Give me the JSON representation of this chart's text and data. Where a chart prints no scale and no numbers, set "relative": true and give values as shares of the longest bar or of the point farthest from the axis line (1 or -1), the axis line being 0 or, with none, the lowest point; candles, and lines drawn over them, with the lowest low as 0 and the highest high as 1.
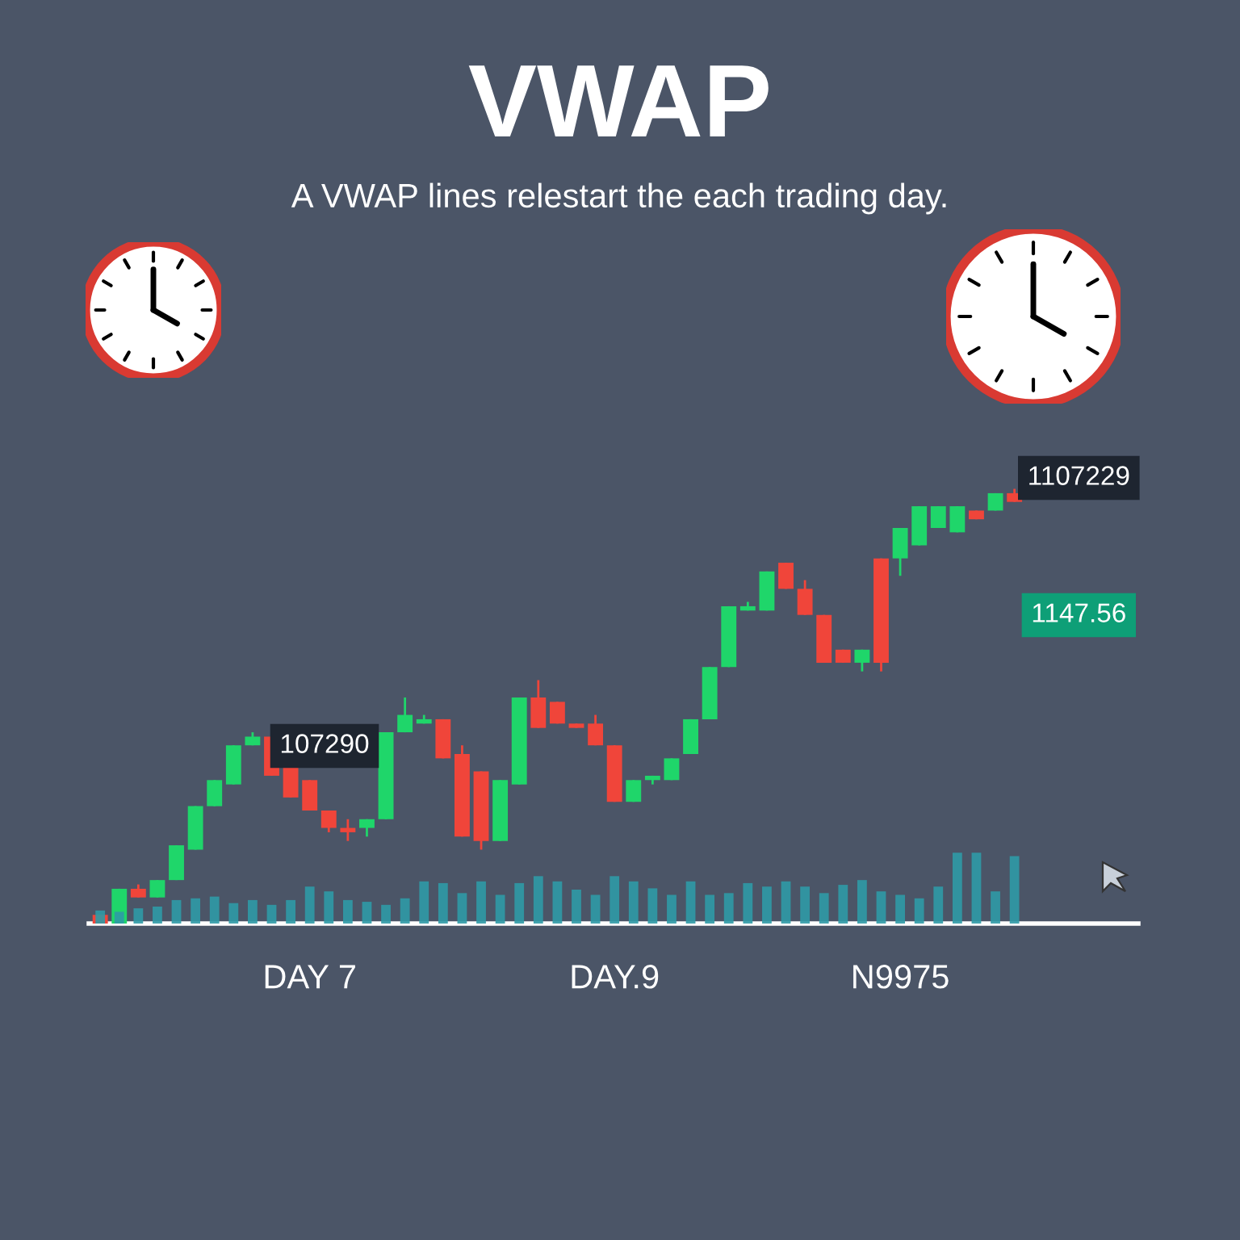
{
  "chart_data": {
    "type": "candlestick",
    "title": "VWAP",
    "subtitle": "A VWAP lines relestart the each trading day.",
    "relative": true,
    "grid": false,
    "legend": false,
    "categories": [
      null,
      null,
      null,
      null,
      null,
      null,
      null,
      null,
      null,
      null,
      null,
      "DAY 7",
      null,
      null,
      null,
      null,
      null,
      null,
      null,
      null,
      null,
      null,
      null,
      null,
      null,
      null,
      null,
      "DAY.9",
      null,
      null,
      null,
      null,
      null,
      null,
      null,
      null,
      null,
      null,
      null,
      null,
      null,
      null,
      "N9975",
      null,
      null,
      null,
      null,
      null,
      null
    ],
    "ohlc": [
      [
        0.02,
        0.02,
        0.0,
        0.0
      ],
      [
        0.0,
        0.08,
        0.0,
        0.08
      ],
      [
        0.08,
        0.09,
        0.06,
        0.06
      ],
      [
        0.06,
        0.1,
        0.06,
        0.1
      ],
      [
        0.1,
        0.18,
        0.1,
        0.18
      ],
      [
        0.17,
        0.27,
        0.17,
        0.27
      ],
      [
        0.27,
        0.33,
        0.27,
        0.33
      ],
      [
        0.32,
        0.41,
        0.32,
        0.41
      ],
      [
        0.41,
        0.44,
        0.41,
        0.43
      ],
      [
        0.43,
        0.44,
        0.34,
        0.34
      ],
      [
        0.36,
        0.36,
        0.29,
        0.29
      ],
      [
        0.33,
        0.33,
        0.26,
        0.26
      ],
      [
        0.26,
        0.26,
        0.21,
        0.22
      ],
      [
        0.22,
        0.24,
        0.19,
        0.21
      ],
      [
        0.22,
        0.24,
        0.2,
        0.24
      ],
      [
        0.24,
        0.44,
        0.24,
        0.44
      ],
      [
        0.44,
        0.52,
        0.44,
        0.48
      ],
      [
        0.46,
        0.48,
        0.46,
        0.47
      ],
      [
        0.47,
        0.47,
        0.38,
        0.38
      ],
      [
        0.39,
        0.41,
        0.2,
        0.2
      ],
      [
        0.35,
        0.35,
        0.17,
        0.19
      ],
      [
        0.19,
        0.33,
        0.19,
        0.33
      ],
      [
        0.32,
        0.52,
        0.32,
        0.52
      ],
      [
        0.52,
        0.56,
        0.45,
        0.45
      ],
      [
        0.51,
        0.51,
        0.46,
        0.46
      ],
      [
        0.46,
        0.46,
        0.45,
        0.45
      ],
      [
        0.46,
        0.48,
        0.41,
        0.41
      ],
      [
        0.41,
        0.41,
        0.28,
        0.28
      ],
      [
        0.28,
        0.33,
        0.28,
        0.33
      ],
      [
        0.33,
        0.34,
        0.32,
        0.34
      ],
      [
        0.33,
        0.38,
        0.33,
        0.38
      ],
      [
        0.39,
        0.47,
        0.39,
        0.47
      ],
      [
        0.47,
        0.59,
        0.47,
        0.59
      ],
      [
        0.59,
        0.73,
        0.59,
        0.73
      ],
      [
        0.72,
        0.74,
        0.72,
        0.73
      ],
      [
        0.72,
        0.81,
        0.72,
        0.81
      ],
      [
        0.83,
        0.83,
        0.77,
        0.77
      ],
      [
        0.77,
        0.79,
        0.71,
        0.71
      ],
      [
        0.71,
        0.71,
        0.6,
        0.6
      ],
      [
        0.63,
        0.63,
        0.6,
        0.6
      ],
      [
        0.6,
        0.63,
        0.58,
        0.63
      ],
      [
        0.84,
        0.84,
        0.58,
        0.6
      ],
      [
        0.84,
        0.91,
        0.8,
        0.91
      ],
      [
        0.87,
        0.96,
        0.87,
        0.96
      ],
      [
        0.91,
        0.96,
        0.91,
        0.96
      ],
      [
        0.9,
        0.96,
        0.9,
        0.96
      ],
      [
        0.95,
        0.95,
        0.93,
        0.93
      ],
      [
        0.95,
        0.99,
        0.95,
        0.99
      ],
      [
        0.99,
        1.0,
        0.97,
        0.97
      ]
    ],
    "series": [
      {
        "type": "bar",
        "color": "#2f9aa6",
        "values": [
          0.03,
          0.027,
          0.035,
          0.039,
          0.054,
          0.058,
          0.062,
          0.047,
          0.054,
          0.043,
          0.054,
          0.085,
          0.074,
          0.054,
          0.05,
          0.043,
          0.058,
          0.097,
          0.093,
          0.07,
          0.097,
          0.066,
          0.093,
          0.109,
          0.097,
          0.078,
          0.066,
          0.109,
          0.097,
          0.081,
          0.066,
          0.097,
          0.066,
          0.07,
          0.093,
          0.085,
          0.097,
          0.085,
          0.07,
          0.089,
          0.1,
          0.074,
          0.066,
          0.058,
          0.085,
          0.163,
          0.163,
          0.074,
          0.155
        ]
      }
    ],
    "colors": [
      "#f0453a",
      "#1fd66a",
      "#f0453a",
      "#1fd66a",
      "#1fd66a",
      "#1fd66a",
      "#1fd66a",
      "#1fd66a",
      "#1fd66a",
      "#f0453a",
      "#f0453a",
      "#f0453a",
      "#f0453a",
      "#f0453a",
      "#1fd66a",
      "#1fd66a",
      "#1fd66a",
      "#1fd66a",
      "#f0453a",
      "#f0453a",
      "#f0453a",
      "#1fd66a",
      "#1fd66a",
      "#f0453a",
      "#f0453a",
      "#f0453a",
      "#f0453a",
      "#f0453a",
      "#1fd66a",
      "#1fd66a",
      "#1fd66a",
      "#1fd66a",
      "#1fd66a",
      "#1fd66a",
      "#1fd66a",
      "#1fd66a",
      "#f0453a",
      "#f0453a",
      "#f0453a",
      "#f0453a",
      "#1fd66a",
      "#f0453a",
      "#1fd66a",
      "#1fd66a",
      "#1fd66a",
      "#1fd66a",
      "#f0453a",
      "#1fd66a",
      "#f0453a"
    ],
    "annotations": [
      "107290",
      "1107229",
      "1147.56"
    ]
  }
}
